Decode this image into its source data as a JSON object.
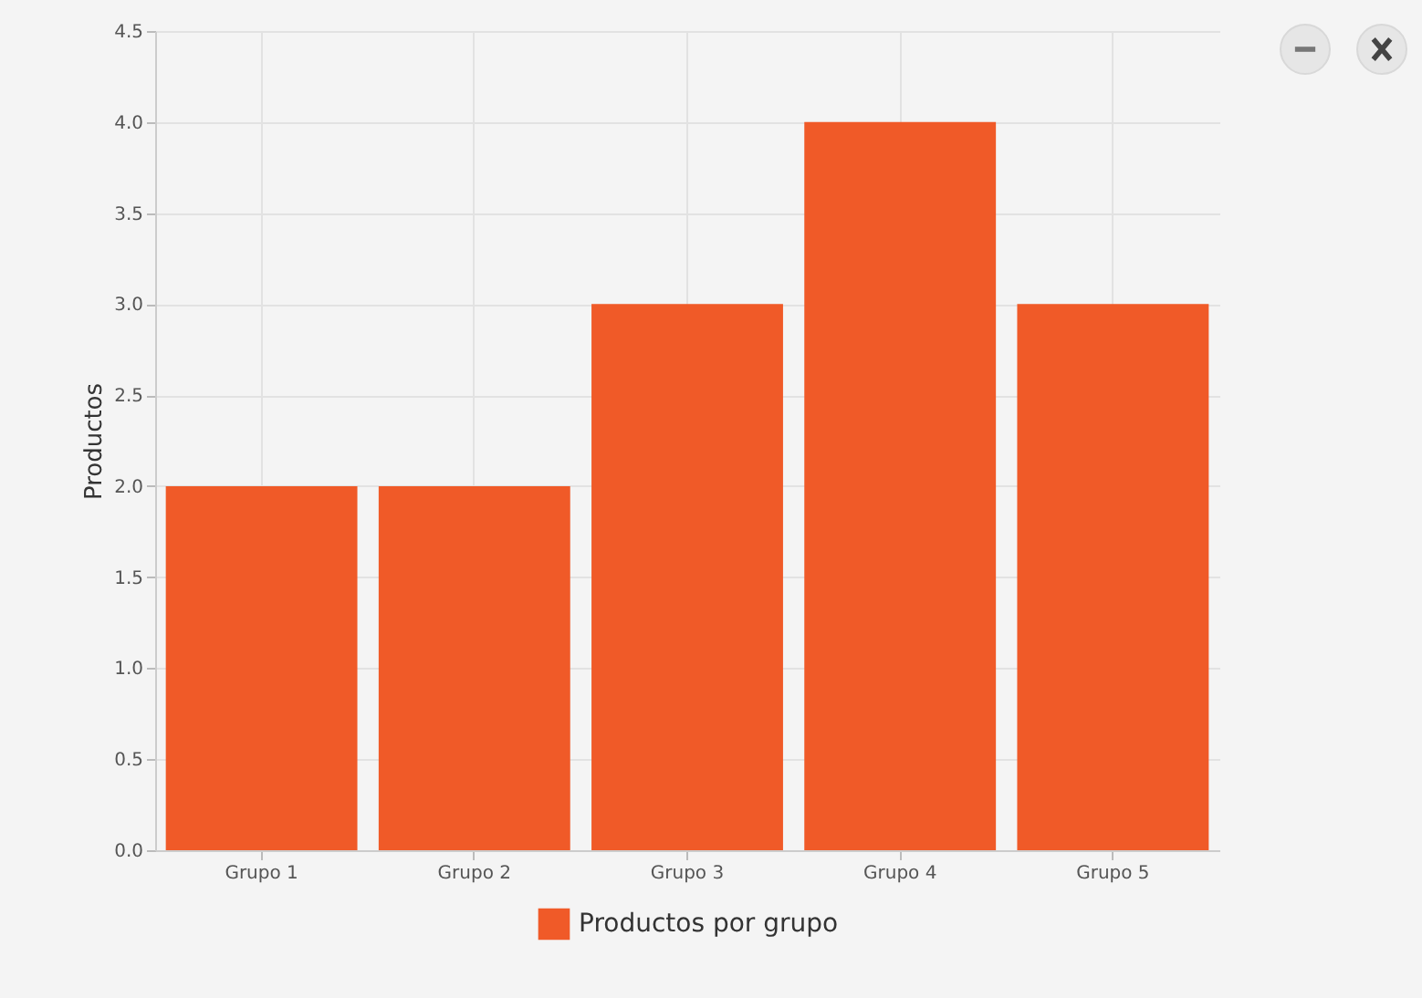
{
  "chart_data": {
    "type": "bar",
    "ylabel": "Productos",
    "categories": [
      "Grupo 1",
      "Grupo 2",
      "Grupo 3",
      "Grupo 4",
      "Grupo 5"
    ],
    "series": [
      {
        "name": "Productos por grupo",
        "color": "#f05a28",
        "values": [
          2,
          2,
          3,
          4,
          3
        ]
      }
    ],
    "ylim": [
      0,
      4.5
    ],
    "yticks": [
      {
        "value": 0,
        "label": "0.0"
      },
      {
        "value": 0.5,
        "label": "0.5"
      },
      {
        "value": 1,
        "label": "1.0"
      },
      {
        "value": 1.5,
        "label": "1.5"
      },
      {
        "value": 2,
        "label": "2.0"
      },
      {
        "value": 2.5,
        "label": "2.5"
      },
      {
        "value": 3,
        "label": "3.0"
      },
      {
        "value": 3.5,
        "label": "3.5"
      },
      {
        "value": 4,
        "label": "4.0"
      },
      {
        "value": 4.5,
        "label": "4.5"
      }
    ],
    "grid": true,
    "legend": "bottom"
  }
}
